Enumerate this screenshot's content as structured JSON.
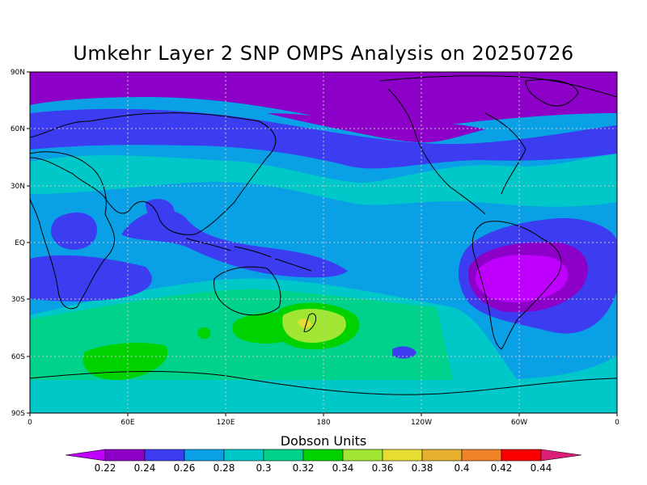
{
  "title": "Umkehr Layer 2 SNP OMPS Analysis on 20250726",
  "lat_ticks": [
    "90N",
    "60N",
    "30N",
    "EQ",
    "30S",
    "60S",
    "90S"
  ],
  "lon_ticks": [
    "0",
    "60E",
    "120E",
    "180",
    "120W",
    "60W",
    "0"
  ],
  "colorbar": {
    "title": "Dobson Units",
    "labels": [
      "0.22",
      "0.24",
      "0.26",
      "0.28",
      "0.3",
      "0.32",
      "0.34",
      "0.36",
      "0.38",
      "0.4",
      "0.42",
      "0.44"
    ],
    "colors": [
      "#c000ff",
      "#8c00c8",
      "#3c3cf0",
      "#0aa0e6",
      "#00c8c8",
      "#00d28c",
      "#00d200",
      "#a0e632",
      "#e6dc32",
      "#e6af2d",
      "#f08228",
      "#fa0000",
      "#dc1e78"
    ]
  },
  "chart_data": {
    "type": "heatmap",
    "title": "Umkehr Layer 2 SNP OMPS Analysis on 20250726",
    "xlabel": "",
    "ylabel": "",
    "x_range": [
      0,
      360
    ],
    "y_range": [
      -90,
      90
    ],
    "units": "Dobson Units",
    "levels": [
      0.22,
      0.24,
      0.26,
      0.28,
      0.3,
      0.32,
      0.34,
      0.36,
      0.38,
      0.4,
      0.42,
      0.44
    ],
    "features": [
      {
        "region": "north polar band",
        "value": 0.23
      },
      {
        "region": "mid-latitude north band",
        "value": 0.25
      },
      {
        "region": "equatorial Atlantic / South America",
        "value": 0.23
      },
      {
        "region": "south of Australia",
        "value": 0.33
      },
      {
        "region": "near New Zealand (maximum)",
        "value": 0.37
      },
      {
        "region": "southern Indian Ocean",
        "value": 0.32
      }
    ]
  }
}
